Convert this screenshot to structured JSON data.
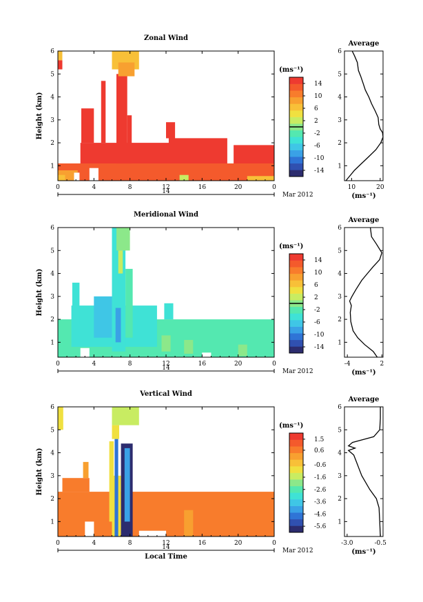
{
  "chart_data": [
    {
      "type": "heatmap",
      "title": "Zonal Wind",
      "ylabel": "Height (km)",
      "yticks": [
        "1",
        "2",
        "3",
        "4",
        "5",
        "6"
      ],
      "ylim": [
        0.35,
        6
      ],
      "xticks": [
        "0",
        "4",
        "8",
        "12",
        "16",
        "20",
        "0"
      ],
      "xlim": [
        0,
        24
      ],
      "day_label": "14",
      "date_label": "Mar 2012",
      "colorbar": {
        "unit": "(ms⁻¹)",
        "ticks": [
          "14",
          "10",
          "6",
          "2",
          "-2",
          "-6",
          "-10",
          "-14"
        ],
        "range": [
          -16,
          16
        ],
        "zero_line": 0,
        "colors": [
          "#2c2c6e",
          "#3050b0",
          "#2f74d6",
          "#3aa1e6",
          "#3fc6e6",
          "#3fe2d6",
          "#54e8b0",
          "#8ce88a",
          "#c8ec62",
          "#f0e040",
          "#f8c038",
          "#f8a030",
          "#f87c2c",
          "#f45a2c",
          "#ee3a30"
        ]
      },
      "profile": {
        "title": "Average",
        "xlabel": "(ms⁻¹)",
        "xticks": [
          "10",
          "20"
        ],
        "xlim": [
          7.5,
          21
        ],
        "yticks": [
          "1",
          "2",
          "3",
          "4",
          "5",
          "6"
        ],
        "points": [
          [
            8.0,
            0.35
          ],
          [
            9.0,
            0.5
          ],
          [
            11.0,
            0.8
          ],
          [
            13.5,
            1.1
          ],
          [
            16.0,
            1.4
          ],
          [
            18.5,
            1.7
          ],
          [
            20.2,
            2.0
          ],
          [
            21.0,
            2.25
          ],
          [
            20.8,
            2.45
          ],
          [
            20.0,
            2.6
          ],
          [
            19.5,
            2.8
          ],
          [
            19.3,
            3.1
          ],
          [
            18.2,
            3.4
          ],
          [
            17.0,
            3.7
          ],
          [
            16.0,
            4.0
          ],
          [
            14.8,
            4.3
          ],
          [
            14.0,
            4.6
          ],
          [
            13.2,
            4.9
          ],
          [
            12.4,
            5.15
          ],
          [
            12.0,
            5.5
          ],
          [
            11.0,
            5.8
          ],
          [
            10.2,
            6.0
          ]
        ]
      },
      "regions": [
        {
          "x": [
            0,
            24
          ],
          "y": [
            0.35,
            1.1
          ],
          "v": 12
        },
        {
          "x": [
            0,
            2.2
          ],
          "y": [
            0.35,
            0.8
          ],
          "v": 9
        },
        {
          "x": [
            0,
            0.8
          ],
          "y": [
            0.35,
            0.6
          ],
          "v": 6
        },
        {
          "x": [
            2.5,
            12.5
          ],
          "y": [
            1.1,
            2.0
          ],
          "v": 14
        },
        {
          "x": [
            2.6,
            4.0
          ],
          "y": [
            2.0,
            3.5
          ],
          "v": 14
        },
        {
          "x": [
            4.8,
            5.3
          ],
          "y": [
            2.0,
            4.7
          ],
          "v": 14
        },
        {
          "x": [
            6.5,
            7.7
          ],
          "y": [
            1.1,
            5.0
          ],
          "v": 14
        },
        {
          "x": [
            7.7,
            8.2
          ],
          "y": [
            1.1,
            3.2
          ],
          "v": 14
        },
        {
          "x": [
            6.0,
            9.0
          ],
          "y": [
            5.2,
            6.0
          ],
          "v": 6
        },
        {
          "x": [
            6.7,
            8.5
          ],
          "y": [
            4.9,
            5.5
          ],
          "v": 9
        },
        {
          "x": [
            12.3,
            18.8
          ],
          "y": [
            1.1,
            2.2
          ],
          "v": 14
        },
        {
          "x": [
            12.0,
            13.0
          ],
          "y": [
            2.2,
            2.9
          ],
          "v": 14
        },
        {
          "x": [
            19.5,
            24.0
          ],
          "y": [
            1.1,
            1.9
          ],
          "v": 14
        },
        {
          "x": [
            0,
            0.5
          ],
          "y": [
            5.2,
            5.6
          ],
          "v": 14
        },
        {
          "x": [
            0,
            0.5
          ],
          "y": [
            5.6,
            6.0
          ],
          "v": 6
        },
        {
          "x": [
            1.8,
            2.4
          ],
          "y": [
            0.35,
            0.7
          ],
          "v": null
        },
        {
          "x": [
            3.5,
            4.5
          ],
          "y": [
            0.35,
            0.9
          ],
          "v": null
        },
        {
          "x": [
            13.5,
            14.5
          ],
          "y": [
            0.35,
            0.6
          ],
          "v": 2
        },
        {
          "x": [
            21.0,
            24.0
          ],
          "y": [
            0.35,
            0.55
          ],
          "v": 6
        }
      ]
    },
    {
      "type": "heatmap",
      "title": "Meridional Wind",
      "ylabel": "Height (km)",
      "yticks": [
        "1",
        "2",
        "3",
        "4",
        "5",
        "6"
      ],
      "ylim": [
        0.35,
        6
      ],
      "xticks": [
        "0",
        "4",
        "8",
        "12",
        "16",
        "20",
        "0"
      ],
      "xlim": [
        0,
        24
      ],
      "day_label": "14",
      "date_label": "Mar 2012",
      "colorbar": {
        "unit": "(ms⁻¹)",
        "ticks": [
          "14",
          "10",
          "6",
          "2",
          "-2",
          "-6",
          "-10",
          "-14"
        ],
        "range": [
          -16,
          16
        ],
        "zero_line": 0,
        "colors": [
          "#2c2c6e",
          "#3050b0",
          "#2f74d6",
          "#3aa1e6",
          "#3fc6e6",
          "#3fe2d6",
          "#54e8b0",
          "#8ce88a",
          "#c8ec62",
          "#f0e040",
          "#f8c038",
          "#f8a030",
          "#f87c2c",
          "#f45a2c",
          "#ee3a30"
        ]
      },
      "profile": {
        "title": "Average",
        "xlabel": "(ms⁻¹)",
        "xticks": [
          "-4",
          "2"
        ],
        "xlim": [
          -4.5,
          2.2
        ],
        "yticks": [
          "1",
          "2",
          "3",
          "4",
          "5",
          "6"
        ],
        "points": [
          [
            1.2,
            0.35
          ],
          [
            0.5,
            0.6
          ],
          [
            -1.0,
            0.9
          ],
          [
            -2.2,
            1.2
          ],
          [
            -3.0,
            1.5
          ],
          [
            -3.4,
            1.9
          ],
          [
            -3.5,
            2.3
          ],
          [
            -3.3,
            2.6
          ],
          [
            -3.6,
            2.8
          ],
          [
            -3.2,
            3.0
          ],
          [
            -2.5,
            3.3
          ],
          [
            -1.5,
            3.7
          ],
          [
            -0.5,
            4.0
          ],
          [
            0.5,
            4.3
          ],
          [
            1.6,
            4.6
          ],
          [
            2.0,
            4.9
          ],
          [
            1.0,
            5.3
          ],
          [
            0.2,
            5.6
          ],
          [
            0.0,
            6.0
          ]
        ]
      },
      "regions": [
        {
          "x": [
            0,
            24
          ],
          "y": [
            0.35,
            2.0
          ],
          "v": -3
        },
        {
          "x": [
            1.5,
            11.0
          ],
          "y": [
            0.8,
            2.6
          ],
          "v": -5
        },
        {
          "x": [
            1.6,
            2.4
          ],
          "y": [
            1.8,
            3.6
          ],
          "v": -4
        },
        {
          "x": [
            4.0,
            6.0
          ],
          "y": [
            1.2,
            3.0
          ],
          "v": -7
        },
        {
          "x": [
            6.0,
            7.5
          ],
          "y": [
            0.6,
            6.0
          ],
          "v": -4
        },
        {
          "x": [
            7.5,
            8.3
          ],
          "y": [
            1.2,
            4.2
          ],
          "v": -3
        },
        {
          "x": [
            6.4,
            7.0
          ],
          "y": [
            1.0,
            2.5
          ],
          "v": -9
        },
        {
          "x": [
            6.5,
            8.0
          ],
          "y": [
            5.0,
            6.0
          ],
          "v": 0
        },
        {
          "x": [
            6.7,
            7.2
          ],
          "y": [
            4.0,
            5.0
          ],
          "v": 2
        },
        {
          "x": [
            11.8,
            12.8
          ],
          "y": [
            2.0,
            2.7
          ],
          "v": -4
        },
        {
          "x": [
            14.0,
            15.0
          ],
          "y": [
            0.5,
            1.1
          ],
          "v": 1
        },
        {
          "x": [
            11.5,
            12.5
          ],
          "y": [
            0.6,
            1.3
          ],
          "v": 1
        },
        {
          "x": [
            20.0,
            21.0
          ],
          "y": [
            0.4,
            0.9
          ],
          "v": 1
        },
        {
          "x": [
            2.5,
            3.5
          ],
          "y": [
            0.35,
            0.75
          ],
          "v": null
        },
        {
          "x": [
            16.0,
            17.0
          ],
          "y": [
            0.35,
            0.55
          ],
          "v": null
        }
      ]
    },
    {
      "type": "heatmap",
      "title": "Vertical Wind",
      "ylabel": "Height (km)",
      "yticks": [
        "1",
        "2",
        "3",
        "4",
        "5",
        "6"
      ],
      "ylim": [
        0.35,
        6
      ],
      "xticks": [
        "0",
        "4",
        "8",
        "12",
        "16",
        "20",
        "0"
      ],
      "xlim": [
        0,
        24
      ],
      "xlabel": "Local Time",
      "day_label": "14",
      "date_label": "Mar 2012",
      "colorbar": {
        "unit": "(ms⁻¹)",
        "ticks": [
          "1.5",
          "0.6",
          "-0.6",
          "-1.6",
          "-2.6",
          "-3.6",
          "-4.6",
          "-5.6"
        ],
        "range": [
          -6.1,
          2.0
        ],
        "colors": [
          "#2c2c6e",
          "#3050b0",
          "#2f74d6",
          "#3aa1e6",
          "#3fc6e6",
          "#3fe2d6",
          "#54e8b0",
          "#8ce88a",
          "#c8ec62",
          "#f0e040",
          "#f8c038",
          "#f8a030",
          "#f87c2c",
          "#f45a2c",
          "#ee3a30"
        ]
      },
      "profile": {
        "title": "Average",
        "xlabel": "(ms⁻¹)",
        "xticks": [
          "-3.0",
          "-0.5"
        ],
        "xlim": [
          -3.2,
          -0.3
        ],
        "yticks": [
          "1",
          "2",
          "3",
          "4",
          "5",
          "6"
        ],
        "points": [
          [
            -0.5,
            0.35
          ],
          [
            -0.55,
            1.0
          ],
          [
            -0.6,
            1.6
          ],
          [
            -0.8,
            2.0
          ],
          [
            -1.3,
            2.4
          ],
          [
            -1.6,
            2.7
          ],
          [
            -1.9,
            3.0
          ],
          [
            -2.1,
            3.3
          ],
          [
            -2.3,
            3.6
          ],
          [
            -2.5,
            3.9
          ],
          [
            -2.9,
            4.1
          ],
          [
            -2.4,
            4.2
          ],
          [
            -2.9,
            4.3
          ],
          [
            -2.6,
            4.45
          ],
          [
            -1.0,
            4.7
          ],
          [
            -0.55,
            5.0
          ],
          [
            -0.5,
            5.5
          ],
          [
            -0.5,
            6.0
          ]
        ]
      },
      "regions": [
        {
          "x": [
            0,
            24
          ],
          "y": [
            0.35,
            2.3
          ],
          "v": 0.6
        },
        {
          "x": [
            0.5,
            3.5
          ],
          "y": [
            2.3,
            2.9
          ],
          "v": 0.6
        },
        {
          "x": [
            2.8,
            3.4
          ],
          "y": [
            2.9,
            3.6
          ],
          "v": 0.3
        },
        {
          "x": [
            6.0,
            7.0
          ],
          "y": [
            0.35,
            3.0
          ],
          "v": -1.2
        },
        {
          "x": [
            6.3,
            6.7
          ],
          "y": [
            0.35,
            4.6
          ],
          "v": -5.0
        },
        {
          "x": [
            7.0,
            8.3
          ],
          "y": [
            0.35,
            4.4
          ],
          "v": -5.6
        },
        {
          "x": [
            7.4,
            8.0
          ],
          "y": [
            1.0,
            4.2
          ],
          "v": -4.2
        },
        {
          "x": [
            5.7,
            6.2
          ],
          "y": [
            1.0,
            4.5
          ],
          "v": -0.9
        },
        {
          "x": [
            0,
            0.6
          ],
          "y": [
            5.0,
            6.0
          ],
          "v": -1.2
        },
        {
          "x": [
            6.0,
            9.0
          ],
          "y": [
            5.2,
            6.0
          ],
          "v": -1.4
        },
        {
          "x": [
            6.0,
            6.8
          ],
          "y": [
            4.6,
            5.2
          ],
          "v": -1.2
        },
        {
          "x": [
            14.0,
            15.0
          ],
          "y": [
            0.35,
            1.5
          ],
          "v": 0.0
        },
        {
          "x": [
            9.0,
            12.0
          ],
          "y": [
            0.35,
            0.6
          ],
          "v": null
        },
        {
          "x": [
            3.0,
            4.0
          ],
          "y": [
            0.35,
            1.0
          ],
          "v": null
        }
      ]
    }
  ]
}
